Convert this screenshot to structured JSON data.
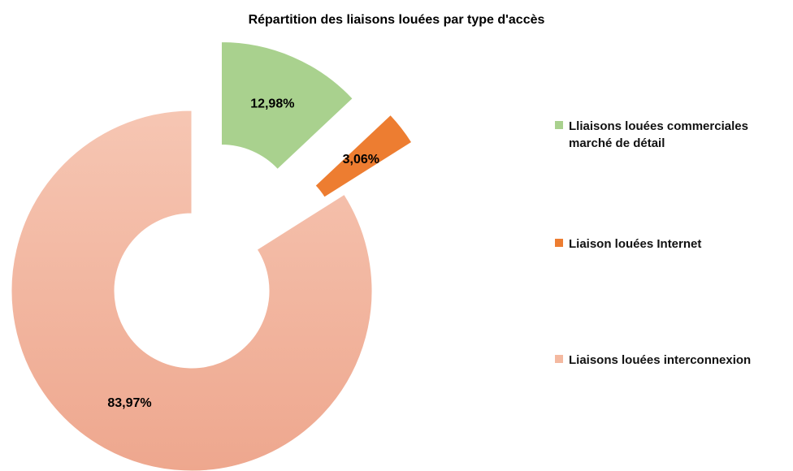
{
  "chart_data": {
    "type": "donut",
    "title": "Répartition des liaisons louées  par type d'accès",
    "categories": [
      "Lliaisons louées commerciales marché de détail",
      "Liaison louées  Internet",
      "Liaisons louées interconnexion"
    ],
    "values": [
      12.98,
      3.06,
      83.97
    ],
    "value_labels": [
      "12,98%",
      "3,06%",
      "83,97%"
    ],
    "colors": [
      "#a9d18e",
      "#ed7d31",
      "#f4b9a0"
    ],
    "legend": "right"
  }
}
